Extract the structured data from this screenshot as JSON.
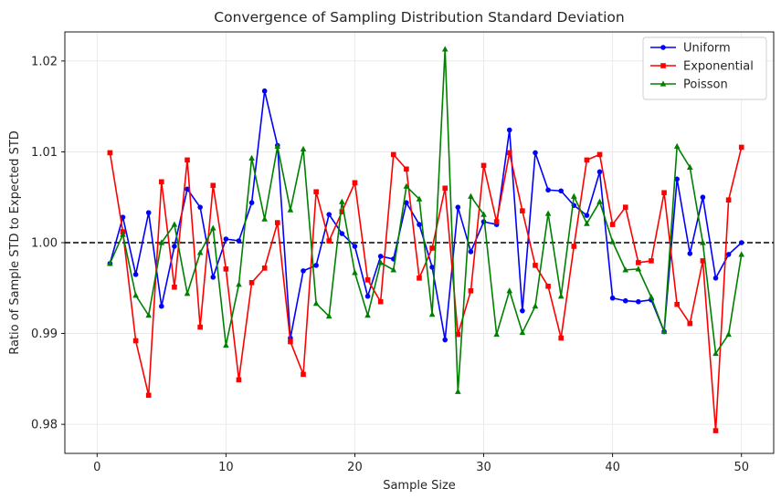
{
  "chart_data": {
    "type": "line",
    "title": "Convergence of Sampling Distribution Standard Deviation",
    "xlabel": "Sample Size",
    "ylabel": "Ratio of Sample STD to Expected STD",
    "xlim": [
      -2.5,
      52.5
    ],
    "ylim": [
      0.9768,
      1.0232
    ],
    "xticks": [
      0,
      10,
      20,
      30,
      40,
      50
    ],
    "yticks": [
      0.98,
      0.99,
      1.0,
      1.01,
      1.02
    ],
    "ytick_labels": [
      "0.98",
      "0.99",
      "1.00",
      "1.01",
      "1.02"
    ],
    "grid": true,
    "legend_position": "top-right",
    "reference_line": {
      "y": 1.0,
      "style": "dashed",
      "color": "#000000"
    },
    "x": [
      1,
      2,
      3,
      4,
      5,
      6,
      7,
      8,
      9,
      10,
      11,
      12,
      13,
      14,
      15,
      16,
      17,
      18,
      19,
      20,
      21,
      22,
      23,
      24,
      25,
      26,
      27,
      28,
      29,
      30,
      31,
      32,
      33,
      34,
      35,
      36,
      37,
      38,
      39,
      40,
      41,
      42,
      43,
      44,
      45,
      46,
      47,
      48,
      49,
      50
    ],
    "series": [
      {
        "name": "Uniform",
        "color": "#0000ff",
        "marker": "circle",
        "values": [
          0.9977,
          1.0028,
          0.9965,
          1.0033,
          0.993,
          0.9996,
          1.0059,
          1.0039,
          0.9962,
          1.0004,
          1.0002,
          1.0044,
          1.0167,
          1.0107,
          0.9895,
          0.9969,
          0.9975,
          1.0031,
          1.001,
          0.9996,
          0.9941,
          0.9985,
          0.9982,
          1.0044,
          1.002,
          0.9973,
          0.9893,
          1.0039,
          0.999,
          1.0023,
          1.002,
          1.0124,
          0.9925,
          1.0099,
          1.0058,
          1.0057,
          1.0041,
          1.003,
          1.0078,
          0.9939,
          0.9936,
          0.9935,
          0.9937,
          0.9902,
          1.007,
          0.9988,
          1.005,
          0.9961,
          0.9987,
          1.0
        ]
      },
      {
        "name": "Exponential",
        "color": "#ff0000",
        "marker": "square",
        "values": [
          1.0099,
          1.0012,
          0.9892,
          0.9832,
          1.0067,
          0.9951,
          1.0091,
          0.9907,
          1.0063,
          0.9971,
          0.9849,
          0.9956,
          0.9972,
          1.0022,
          0.9891,
          0.9855,
          1.0056,
          1.0002,
          1.0034,
          1.0066,
          0.9959,
          0.9935,
          1.0097,
          1.0081,
          0.9961,
          0.9994,
          1.006,
          0.9899,
          0.9947,
          1.0085,
          1.0023,
          1.0099,
          1.0035,
          0.9975,
          0.9952,
          0.9895,
          0.9996,
          1.0091,
          1.0097,
          1.002,
          1.0039,
          0.9978,
          0.998,
          1.0055,
          0.9932,
          0.9911,
          0.998,
          0.9793,
          1.0047,
          1.0105
        ]
      },
      {
        "name": "Poisson",
        "color": "#008000",
        "marker": "triangle",
        "values": [
          0.9977,
          1.0009,
          0.9942,
          0.992,
          1.0,
          1.002,
          0.9944,
          0.9989,
          1.0016,
          0.9887,
          0.9954,
          1.0093,
          1.0026,
          1.0106,
          1.0036,
          1.0103,
          0.9933,
          0.9919,
          1.0045,
          0.9967,
          0.992,
          0.9978,
          0.997,
          1.0062,
          1.0048,
          0.9921,
          1.0213,
          0.9836,
          1.0051,
          1.0031,
          0.9899,
          0.9947,
          0.9901,
          0.993,
          1.0032,
          0.9941,
          1.0051,
          1.0021,
          1.0045,
          1.0001,
          0.997,
          0.9971,
          0.994,
          0.9902,
          1.0106,
          1.0083,
          1.0,
          0.9878,
          0.9899,
          0.9987
        ]
      }
    ]
  }
}
